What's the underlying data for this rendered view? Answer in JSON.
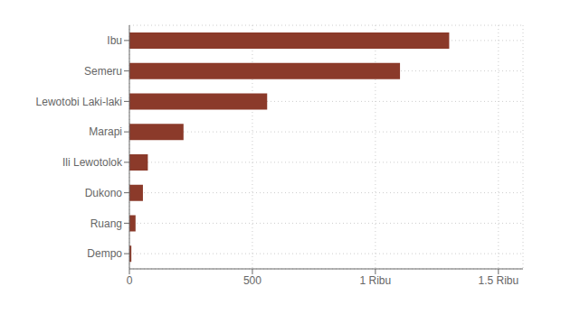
{
  "chart_data": {
    "type": "bar",
    "orientation": "horizontal",
    "categories": [
      "Dempo",
      "Ruang",
      "Dukono",
      "Ili Lewotolok",
      "Marapi",
      "Lewotobi Laki-laki",
      "Semeru",
      "Ibu"
    ],
    "values": [
      8,
      25,
      55,
      75,
      220,
      560,
      1100,
      1300
    ],
    "color": "#8B3A2A",
    "xlim": [
      0,
      1600
    ],
    "xticks": [
      0,
      500,
      {
        "value": 1000,
        "label": "1 Ribu"
      },
      {
        "value": 1500,
        "label": "1.5 Ribu"
      }
    ],
    "grid": true
  }
}
